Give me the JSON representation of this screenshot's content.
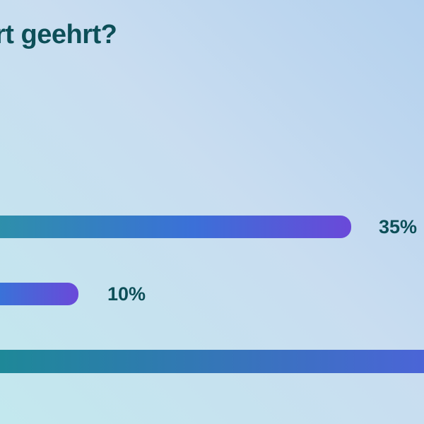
{
  "title": "rt geehrt?",
  "colors": {
    "title_text": "#0d4f58",
    "value_label_text": "#0d4f58",
    "background_top_right": "#b4d1ee",
    "background_middle": "#c9ddf0",
    "background_bottom_left": "#c3e8ee",
    "bar_gradient_start_teal": "#1e8898",
    "bar_gradient_mid_blue": "#3b70d8",
    "bar_gradient_end_purple": "#6a49d9"
  },
  "chart_data": {
    "type": "bar",
    "orientation": "horizontal",
    "title": "rt geehrt?",
    "title_cropped_at_left_edge": true,
    "legend": "none",
    "grid": "off",
    "axes_visible": false,
    "bars": [
      {
        "value": 35,
        "label": "35%",
        "cropped_left": true
      },
      {
        "value": 10,
        "label": "10%",
        "cropped_left": true
      },
      {
        "value": null,
        "label": "",
        "cropped_left": true,
        "cropped_right": true
      }
    ]
  }
}
